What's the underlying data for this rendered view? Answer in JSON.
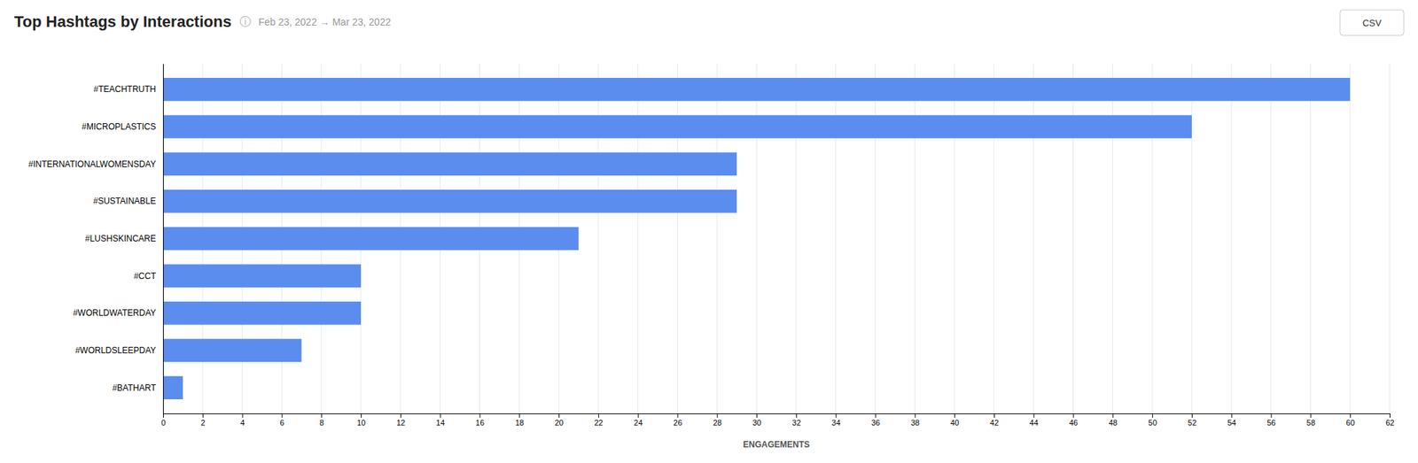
{
  "chart_data": {
    "type": "bar",
    "orientation": "horizontal",
    "title": "Top Hashtags by Interactions",
    "subtitle": "Feb 23, 2022 → Mar 23, 2022",
    "xlabel": "ENGAGEMENTS",
    "annotations": [
      "ⓘ",
      "CSV"
    ],
    "categories": [
      "#BATHART",
      "#WORLDSLEEPDAY",
      "#WORLDWATERDAY",
      "#CCT",
      "#LUSHSKINCARE",
      "#SUSTAINABLE",
      "#INTERNATIONALWOMENSDAY",
      "#MICROPLASTICS",
      "#TEACHTRUTH"
    ],
    "values": [
      1,
      7,
      10,
      10,
      21,
      29,
      29,
      52,
      60
    ],
    "color": "#5B8DEF",
    "xlim": [
      0,
      62
    ],
    "xticks": [
      0,
      2,
      4,
      6,
      8,
      10,
      12,
      14,
      16,
      18,
      20,
      22,
      24,
      26,
      28,
      30,
      32,
      34,
      36,
      38,
      40,
      42,
      44,
      46,
      48,
      50,
      52,
      54,
      56,
      58,
      60,
      62
    ],
    "grid": true
  }
}
